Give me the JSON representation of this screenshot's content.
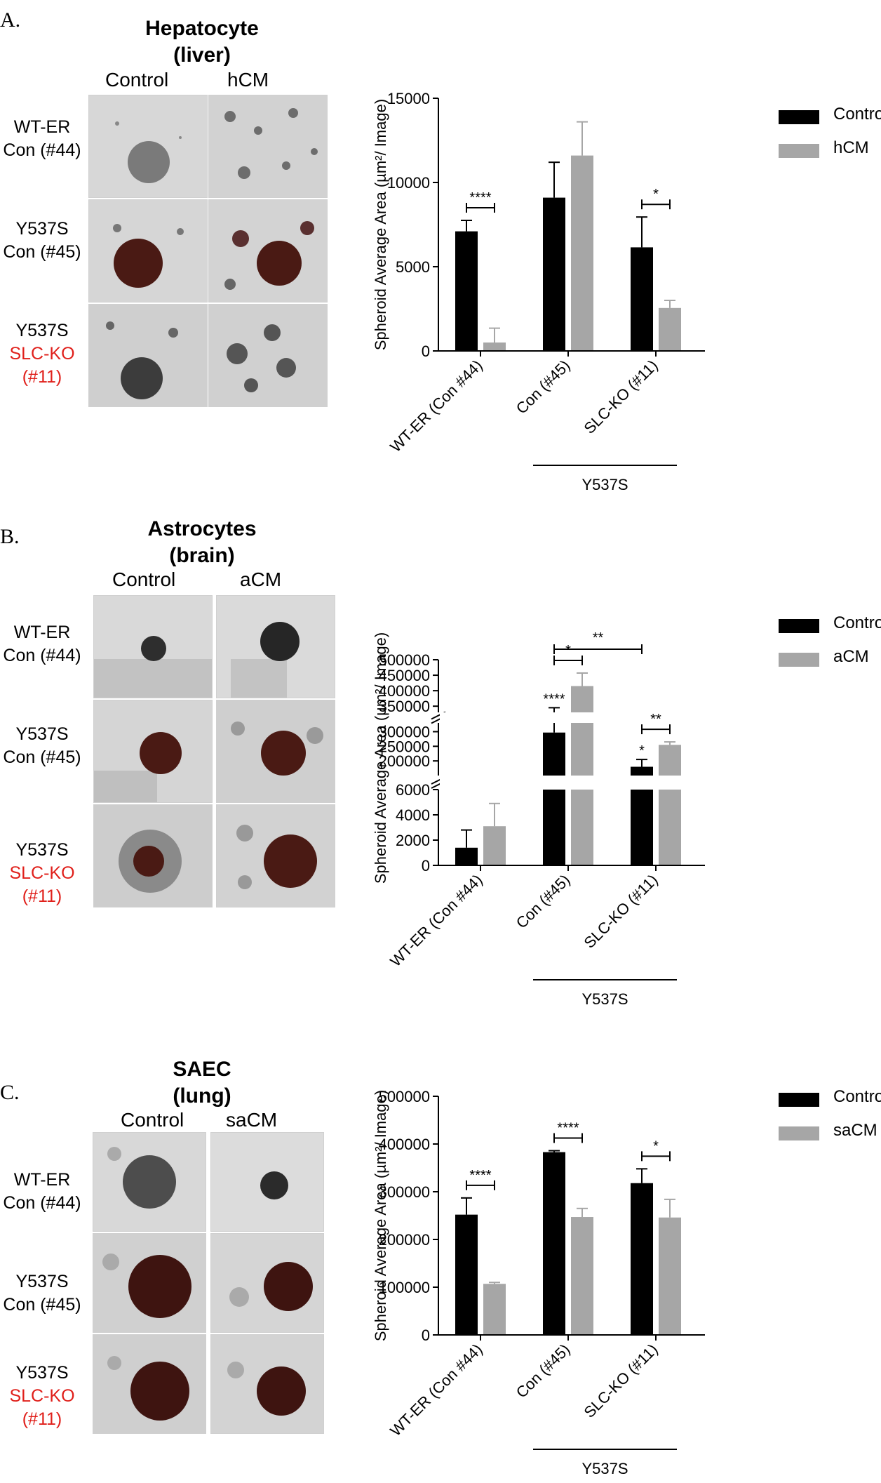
{
  "panels": [
    {
      "label": "A.",
      "title_line1": "Hepatocyte",
      "title_line2": "(liver)",
      "col_headers": [
        "Control",
        "hCM"
      ],
      "rows": [
        {
          "line1": "WT-ER",
          "line2": "Con (#44)",
          "line3": ""
        },
        {
          "line1": "Y537S",
          "line2": "Con (#45)",
          "line3": ""
        },
        {
          "line1": "Y537S",
          "line2": "SLC-KO",
          "line3": "(#11)"
        }
      ],
      "legend": [
        "Control",
        "hCM"
      ],
      "chart_data": {
        "type": "bar",
        "categories": [
          "WT-ER (Con #44)",
          "Con (#45)",
          "SLC-KO (#11)"
        ],
        "group_label": "Y537S",
        "ylabel": "Spheroid Average Area  (µm²/ Image)",
        "ylim": [
          0,
          15000
        ],
        "yticks": [
          "0",
          "5000",
          "10000",
          "15000"
        ],
        "series": [
          {
            "name": "Control",
            "values": [
              7100,
              9100,
              6150
            ],
            "errors": [
              650,
              2100,
              1800
            ]
          },
          {
            "name": "hCM",
            "values": [
              500,
              11600,
              2550
            ],
            "errors": [
              850,
              2000,
              450
            ]
          }
        ],
        "significance": [
          {
            "text": "****",
            "category": 0,
            "type": "within"
          },
          {
            "text": "*",
            "category": 2,
            "type": "within"
          }
        ]
      }
    },
    {
      "label": "B.",
      "title_line1": "Astrocytes",
      "title_line2": "(brain)",
      "col_headers": [
        "Control",
        "aCM"
      ],
      "rows": [
        {
          "line1": "WT-ER",
          "line2": "Con (#44)",
          "line3": ""
        },
        {
          "line1": "Y537S",
          "line2": "Con (#45)",
          "line3": ""
        },
        {
          "line1": "Y537S",
          "line2": "SLC-KO",
          "line3": "(#11)"
        }
      ],
      "legend": [
        "Control",
        "aCM"
      ],
      "chart_data": {
        "type": "bar",
        "broken_axis": true,
        "categories": [
          "WT-ER (Con #44)",
          "Con (#45)",
          "SLC-KO (#11)"
        ],
        "group_label": "Y537S",
        "ylabel": "Spheroid Average Area  (µm²/ Image)",
        "segments": [
          {
            "range": [
              0,
              6000
            ],
            "ticks": [
              "0",
              "2000",
              "4000",
              "6000"
            ]
          },
          {
            "range": [
              150000,
              330000
            ],
            "ticks": [
              "200000",
              "250000",
              "300000"
            ]
          },
          {
            "range": [
              330000,
              500000
            ],
            "ticks": [
              "350000",
              "400000",
              "450000",
              "500000"
            ]
          }
        ],
        "series": [
          {
            "name": "Control",
            "values": [
              1400,
              297000,
              180000
            ],
            "errors": [
              1400,
              48000,
              25000
            ]
          },
          {
            "name": "aCM",
            "values": [
              3100,
              415000,
              255000
            ],
            "errors": [
              1800,
              42000,
              10000
            ]
          }
        ],
        "significance": [
          {
            "text": "****",
            "category": 1,
            "type": "above-bar"
          },
          {
            "text": "*",
            "category": 2,
            "type": "above-bar"
          },
          {
            "text": "*",
            "category": 1,
            "type": "within"
          },
          {
            "text": "**",
            "category": 2,
            "type": "within"
          },
          {
            "text": "**",
            "from": 1,
            "to": 2,
            "type": "between"
          }
        ]
      }
    },
    {
      "label": "C.",
      "title_line1": "SAEC",
      "title_line2": "(lung)",
      "col_headers": [
        "Control",
        "saCM"
      ],
      "rows": [
        {
          "line1": "WT-ER",
          "line2": "Con (#44)",
          "line3": ""
        },
        {
          "line1": "Y537S",
          "line2": "Con (#45)",
          "line3": ""
        },
        {
          "line1": "Y537S",
          "line2": "SLC-KO",
          "line3": "(#11)"
        }
      ],
      "legend": [
        "Control",
        "saCM"
      ],
      "chart_data": {
        "type": "bar",
        "categories": [
          "WT-ER (Con #44)",
          "Con (#45)",
          "SLC-KO (#11)"
        ],
        "group_label": "Y537S",
        "ylabel": "Spheroid Average Area  (µm²/ Image)",
        "ylim": [
          0,
          500000
        ],
        "yticks": [
          "0",
          "100000",
          "200000",
          "300000",
          "400000",
          "500000"
        ],
        "series": [
          {
            "name": "Control",
            "values": [
              252000,
              383000,
              318000
            ],
            "errors": [
              35000,
              3000,
              30000
            ]
          },
          {
            "name": "saCM",
            "values": [
              107000,
              247000,
              246000
            ],
            "errors": [
              3000,
              18000,
              38000
            ]
          }
        ],
        "significance": [
          {
            "text": "****",
            "category": 0,
            "type": "within"
          },
          {
            "text": "****",
            "category": 1,
            "type": "within"
          },
          {
            "text": "*",
            "category": 2,
            "type": "within"
          }
        ]
      }
    }
  ],
  "colors": {
    "control": "#000000",
    "treated": "#a6a6a6",
    "red_label": "#e0201b"
  }
}
